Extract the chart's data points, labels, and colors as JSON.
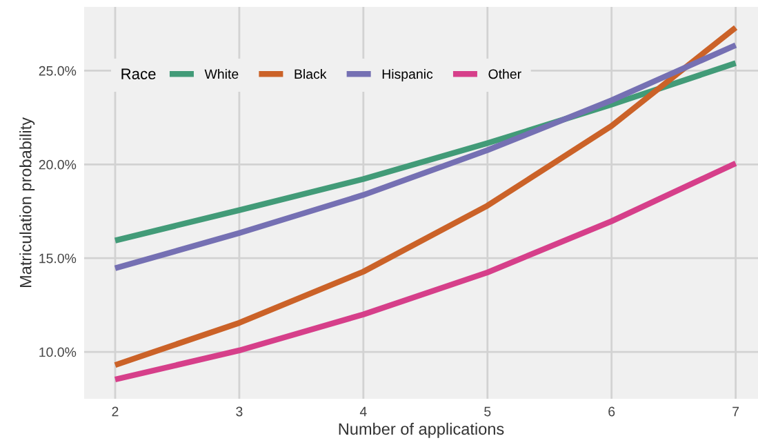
{
  "chart_data": {
    "type": "line",
    "xlabel": "Number of applications",
    "ylabel": "Matriculation probability",
    "legend_title": "Race",
    "x": [
      2,
      3,
      4,
      5,
      6,
      7
    ],
    "series": [
      {
        "name": "White",
        "color": "#429b78",
        "values": [
          15.94,
          17.56,
          19.22,
          21.13,
          23.19,
          25.4
        ]
      },
      {
        "name": "Black",
        "color": "#cb6228",
        "values": [
          9.3,
          11.55,
          14.28,
          17.8,
          22.05,
          27.3
        ]
      },
      {
        "name": "Hispanic",
        "color": "#7570b3",
        "values": [
          14.46,
          16.34,
          18.37,
          20.76,
          23.42,
          26.36
        ]
      },
      {
        "name": "Other",
        "color": "#d63f8a",
        "values": [
          8.53,
          10.08,
          12.0,
          14.24,
          16.97,
          20.06
        ]
      }
    ],
    "xlim": [
      1.75,
      7.18
    ],
    "xticks": [
      2,
      3,
      4,
      5,
      6,
      7
    ],
    "ylim": [
      7.5,
      28.4
    ],
    "yticks": [
      {
        "value": 10,
        "label": "10.0%"
      },
      {
        "value": 15,
        "label": "15.0%"
      },
      {
        "value": 20,
        "label": "20.0%"
      },
      {
        "value": 25,
        "label": "25.0%"
      }
    ],
    "grid": true,
    "legend": "top left",
    "marker": "none",
    "line_style": "solid"
  }
}
